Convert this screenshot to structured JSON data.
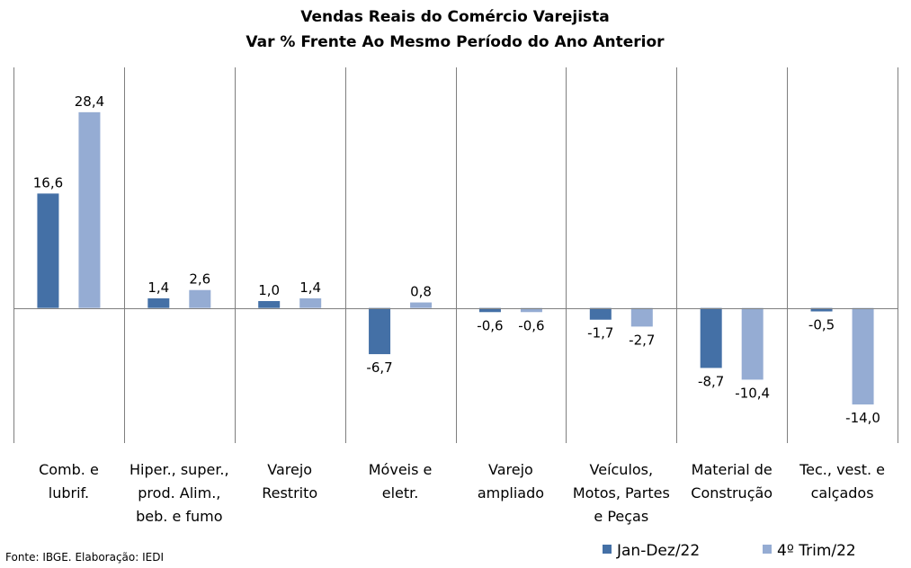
{
  "chart_data": {
    "type": "bar",
    "title": [
      "Vendas Reais do Comércio Varejista",
      "Var % Frente Ao Mesmo Período do Ano Anterior"
    ],
    "categories": [
      [
        "Comb. e",
        "lubrif."
      ],
      [
        "Hiper., super.,",
        "prod. Alim.,",
        "beb. e fumo"
      ],
      [
        "Varejo",
        "Restrito"
      ],
      [
        "Móveis e",
        "eletr."
      ],
      [
        "Varejo",
        "ampliado"
      ],
      [
        "Veículos,",
        "Motos, Partes",
        "e Peças"
      ],
      [
        "Material de",
        "Construção"
      ],
      [
        "Tec., vest. e",
        "calçados"
      ]
    ],
    "series": [
      {
        "name": "Jan-Dez/22",
        "color": "#4470a6",
        "values": [
          16.6,
          1.4,
          1.0,
          -6.7,
          -0.6,
          -1.7,
          -8.7,
          -0.5
        ],
        "labels": [
          "16,6",
          "1,4",
          "1,0",
          "-6,7",
          "-0,6",
          "-1,7",
          "-8,7",
          "-0,5"
        ]
      },
      {
        "name": "4º Trim/22",
        "color": "#95acd3",
        "values": [
          28.4,
          2.6,
          1.4,
          0.8,
          -0.6,
          -2.7,
          -10.4,
          -14.0
        ],
        "labels": [
          "28,4",
          "2,6",
          "1,4",
          "0,8",
          "-0,6",
          "-2,7",
          "-10,4",
          "-14,0"
        ]
      }
    ],
    "ylim": [
      -19.6,
      34.9
    ],
    "grid": false,
    "legend": "bottom-right"
  },
  "footer": {
    "source": "Fonte: IBGE. Elaboração: IEDI"
  }
}
